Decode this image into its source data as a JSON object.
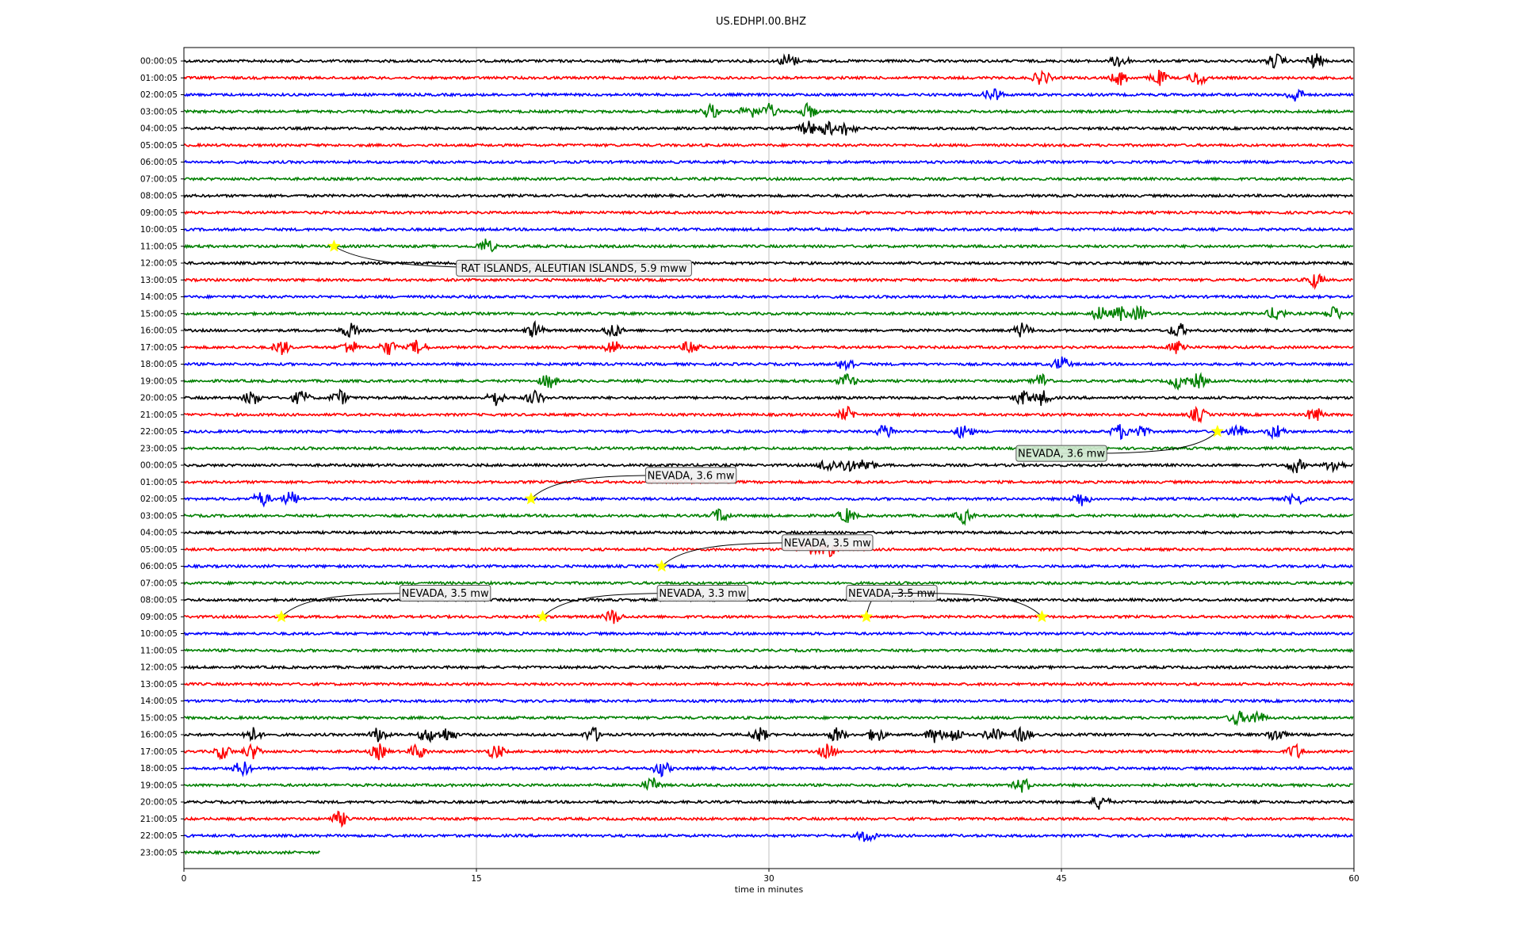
{
  "chart_data": {
    "type": "line",
    "title": "US.EDHPI.00.BHZ",
    "xlabel": "time in minutes",
    "xlim": [
      0,
      60
    ],
    "xticks": [
      0,
      15,
      30,
      45,
      60
    ],
    "grid": "x-only",
    "trace_colors": [
      "#000000",
      "#ff0000",
      "#0000ff",
      "#008000"
    ],
    "row_labels": [
      "00:00:05",
      "01:00:05",
      "02:00:05",
      "03:00:05",
      "04:00:05",
      "05:00:05",
      "06:00:05",
      "07:00:05",
      "08:00:05",
      "09:00:05",
      "10:00:05",
      "11:00:05",
      "12:00:05",
      "13:00:05",
      "14:00:05",
      "15:00:05",
      "16:00:05",
      "17:00:05",
      "18:00:05",
      "19:00:05",
      "20:00:05",
      "21:00:05",
      "22:00:05",
      "23:00:05",
      "00:00:05",
      "01:00:05",
      "02:00:05",
      "03:00:05",
      "04:00:05",
      "05:00:05",
      "06:00:05",
      "07:00:05",
      "08:00:05",
      "09:00:05",
      "10:00:05",
      "11:00:05",
      "12:00:05",
      "13:00:05",
      "14:00:05",
      "15:00:05",
      "16:00:05",
      "17:00:05",
      "18:00:05",
      "19:00:05",
      "20:00:05",
      "21:00:05",
      "22:00:05",
      "23:00:05"
    ],
    "last_row_end_minute": 7,
    "activity": [
      {
        "row": 0,
        "x": [
          31,
          48,
          56,
          58
        ]
      },
      {
        "row": 1,
        "x": [
          44,
          48,
          50,
          52
        ]
      },
      {
        "row": 2,
        "x": [
          41.5,
          57
        ]
      },
      {
        "row": 3,
        "x": [
          27,
          29,
          30,
          32
        ]
      },
      {
        "row": 4,
        "x": [
          32,
          33,
          34
        ]
      },
      {
        "row": 11,
        "x": [
          15.5
        ]
      },
      {
        "row": 13,
        "x": [
          58
        ]
      },
      {
        "row": 15,
        "x": [
          47,
          48,
          49,
          56,
          59
        ]
      },
      {
        "row": 16,
        "x": [
          8.5,
          18,
          22,
          43,
          51
        ]
      },
      {
        "row": 17,
        "x": [
          5,
          8.5,
          10.5,
          12,
          22,
          26,
          51
        ]
      },
      {
        "row": 18,
        "x": [
          34,
          45
        ]
      },
      {
        "row": 19,
        "x": [
          18.7,
          34,
          44,
          51,
          52
        ]
      },
      {
        "row": 20,
        "x": [
          3.5,
          6,
          8,
          16,
          18,
          43,
          44
        ]
      },
      {
        "row": 21,
        "x": [
          34,
          52,
          58
        ]
      },
      {
        "row": 22,
        "x": [
          36,
          40,
          48,
          49,
          54,
          56
        ]
      },
      {
        "row": 24,
        "x": [
          33,
          34,
          35,
          57,
          59
        ]
      },
      {
        "row": 26,
        "x": [
          4,
          5.5,
          46,
          57
        ]
      },
      {
        "row": 27,
        "x": [
          27.5,
          34,
          40
        ]
      },
      {
        "row": 29,
        "x": [
          32,
          33
        ]
      },
      {
        "row": 33,
        "x": [
          22
        ]
      },
      {
        "row": 39,
        "x": [
          54,
          55
        ]
      },
      {
        "row": 40,
        "x": [
          3.5,
          10,
          12.5,
          13.5,
          21,
          29.5,
          33.5,
          35.5,
          38.5,
          39.5,
          41.5,
          43,
          56
        ]
      },
      {
        "row": 41,
        "x": [
          2,
          3.5,
          10,
          12,
          16,
          33,
          57
        ]
      },
      {
        "row": 42,
        "x": [
          3,
          24.5
        ]
      },
      {
        "row": 43,
        "x": [
          24,
          43
        ]
      },
      {
        "row": 44,
        "x": [
          47
        ]
      },
      {
        "row": 45,
        "x": [
          8
        ]
      },
      {
        "row": 46,
        "x": [
          35
        ]
      }
    ],
    "events": [
      {
        "label": "RAT ISLANDS, ALEUTIAN ISLANDS, 5.9 mww",
        "row": 11,
        "minute": 7.7,
        "label_row": 12.3,
        "label_minute": 20,
        "box": "#f0f0f0"
      },
      {
        "label": "NEVADA, 3.6 mw",
        "row": 22,
        "minute": 53,
        "label_row": 23.3,
        "label_minute": 45,
        "box": "#cfe8cf"
      },
      {
        "label": "NEVADA, 3.6 mw",
        "row": 26,
        "minute": 17.8,
        "label_row": 24.6,
        "label_minute": 26,
        "box": "#f0f0f0"
      },
      {
        "label": "NEVADA, 3.5 mw",
        "row": 30,
        "minute": 24.5,
        "label_row": 28.6,
        "label_minute": 33,
        "box": "#f0f0f0"
      },
      {
        "label": "NEVADA, 3.5 mw",
        "row": 33,
        "minute": 5,
        "label_row": 31.6,
        "label_minute": 13.4,
        "box": "#f0f0f0"
      },
      {
        "label": "NEVADA, 3.3 mw",
        "row": 33,
        "minute": 18.4,
        "label_row": 31.6,
        "label_minute": 26.6,
        "box": "#f0f0f0"
      },
      {
        "label": "NEVADA, 3.5 mw",
        "row": 33,
        "minute": 35,
        "label_row": 31.6,
        "label_minute": 36.3,
        "box": "#f0f0f0"
      },
      {
        "label": "NEVADA, 3.5 mw",
        "row": 33,
        "minute": 44,
        "label_row": 31.6,
        "label_minute": 36.3,
        "box": "#f0f0f0",
        "hide_label": true
      }
    ]
  }
}
